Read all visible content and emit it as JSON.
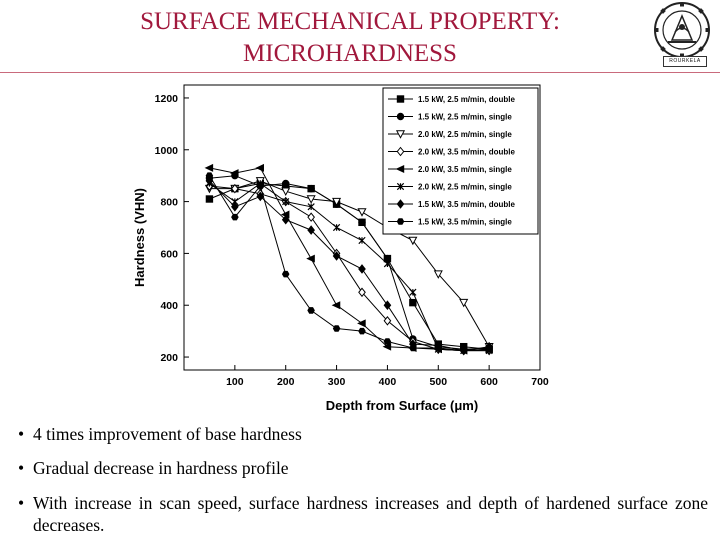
{
  "header": {
    "title_line1": "SURFACE MECHANICAL PROPERTY:",
    "title_line2": "MICROHARDNESS",
    "logo_text": "ROURKELA"
  },
  "colors": {
    "title": "#a1183c",
    "rule": "#c96a7c"
  },
  "bullets": [
    "4 times improvement of base hardness",
    "Gradual decrease in hardness profile",
    "With increase in scan speed, surface hardness increases and depth of hardened surface zone decreases."
  ],
  "chart_data": {
    "type": "line",
    "xlabel": "Depth from Surface (μm)",
    "ylabel": "Hardness (VHN)",
    "xlim": [
      0,
      700
    ],
    "ylim": [
      150,
      1250
    ],
    "xticks": [
      100,
      200,
      300,
      400,
      500,
      600,
      700
    ],
    "yticks": [
      200,
      400,
      600,
      800,
      1000,
      1200
    ],
    "legend_position": "top-right",
    "grid": false,
    "series": [
      {
        "name": "1.5 kW, 2.5 m/min, double",
        "marker": "square-filled",
        "x": [
          50,
          100,
          150,
          200,
          250,
          300,
          350,
          400,
          450,
          500,
          550,
          600
        ],
        "y": [
          810,
          850,
          870,
          860,
          850,
          790,
          720,
          580,
          410,
          250,
          240,
          230
        ]
      },
      {
        "name": "1.5 kW, 2.5 m/min, single",
        "marker": "circle-filled",
        "x": [
          50,
          100,
          150,
          200,
          250,
          300,
          350,
          400,
          450,
          500,
          550,
          600
        ],
        "y": [
          890,
          900,
          860,
          870,
          850,
          790,
          720,
          580,
          270,
          240,
          230,
          235
        ]
      },
      {
        "name": "2.0 kW, 2.5 m/min, single",
        "marker": "triangle-down-open",
        "x": [
          50,
          100,
          150,
          200,
          250,
          300,
          350,
          400,
          450,
          500,
          550,
          600
        ],
        "y": [
          850,
          850,
          880,
          840,
          810,
          800,
          760,
          700,
          650,
          520,
          410,
          240
        ]
      },
      {
        "name": "2.0 kW, 3.5 m/min, double",
        "marker": "diamond-open",
        "x": [
          50,
          100,
          150,
          200,
          250,
          300,
          350,
          400,
          450,
          500,
          550,
          600
        ],
        "y": [
          860,
          850,
          830,
          800,
          740,
          600,
          450,
          340,
          260,
          230,
          225,
          225
        ]
      },
      {
        "name": "2.0 kW, 3.5 m/min, single",
        "marker": "triangle-left-filled",
        "x": [
          50,
          100,
          150,
          200,
          250,
          300,
          350,
          400,
          450,
          500,
          550,
          600
        ],
        "y": [
          930,
          910,
          930,
          750,
          580,
          400,
          330,
          240,
          235,
          230,
          225,
          230
        ]
      },
      {
        "name": "2.0 kW, 2.5 m/min, single",
        "marker": "star",
        "x": [
          50,
          100,
          150,
          200,
          250,
          300,
          350,
          400,
          450,
          500,
          550,
          600
        ],
        "y": [
          870,
          800,
          870,
          800,
          780,
          700,
          650,
          560,
          450,
          230,
          225,
          225
        ]
      },
      {
        "name": "1.5 kW, 3.5 m/min, double",
        "marker": "diamond-filled",
        "x": [
          50,
          100,
          150,
          200,
          250,
          300,
          350,
          400,
          450,
          500,
          550,
          600
        ],
        "y": [
          880,
          780,
          820,
          730,
          690,
          590,
          540,
          400,
          250,
          245,
          225,
          240
        ]
      },
      {
        "name": "1.5 kW, 3.5 m/min, single",
        "marker": "hexagon-filled",
        "x": [
          50,
          100,
          150,
          200,
          250,
          300,
          350,
          400,
          450,
          500,
          550,
          600
        ],
        "y": [
          900,
          740,
          860,
          520,
          380,
          310,
          300,
          260,
          235,
          235,
          225,
          230
        ]
      }
    ]
  }
}
